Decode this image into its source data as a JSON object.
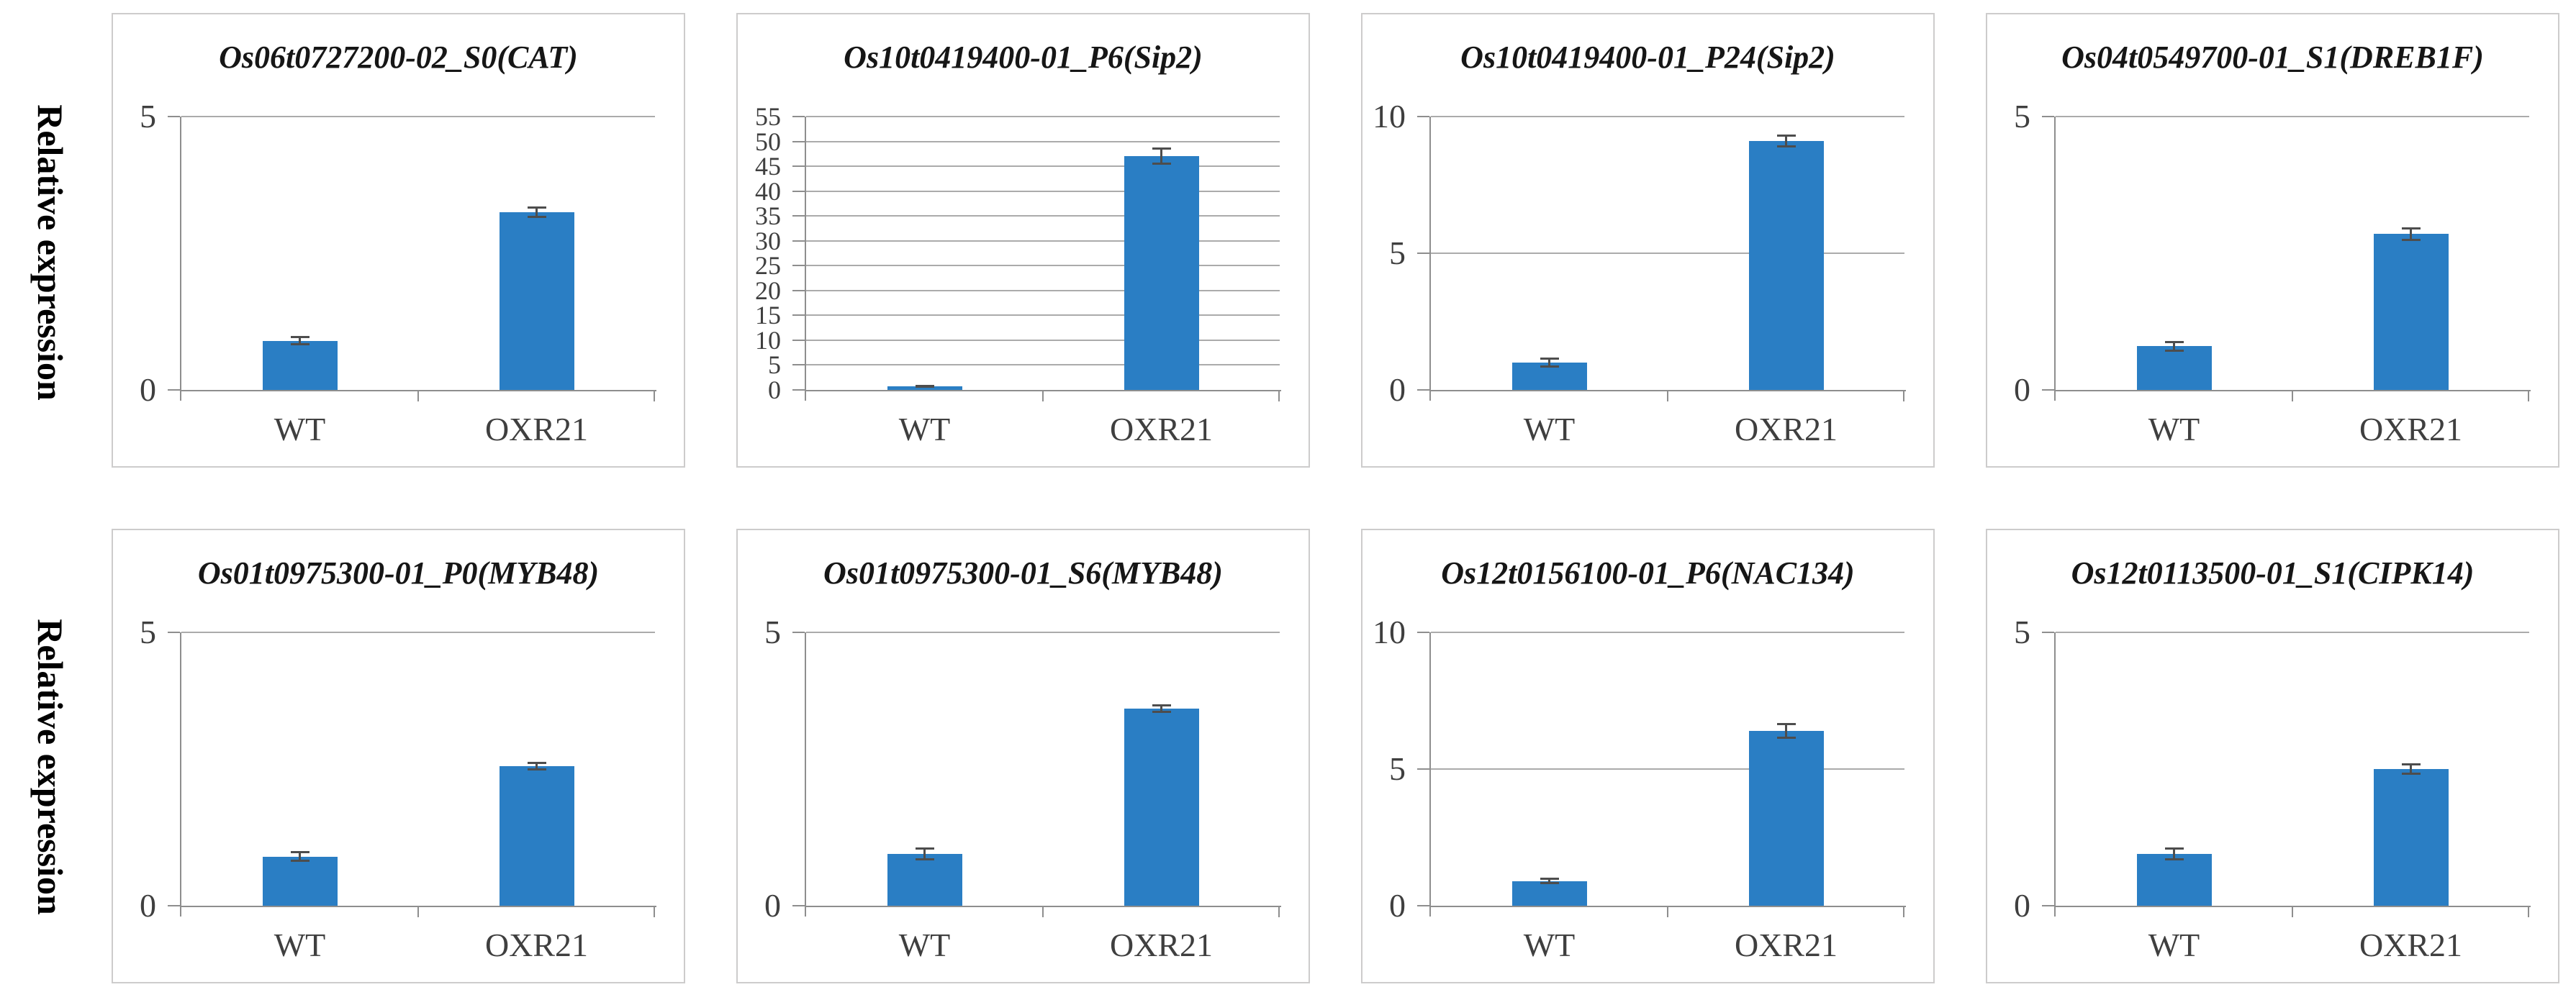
{
  "figure": {
    "row_label": "Relative expression",
    "x_categories": [
      "WT",
      "OXR21"
    ],
    "colors": {
      "bar": "#2a7ec4",
      "gridline": "#ababab",
      "axis": "#8e8e8e",
      "error_bar": "#4d4d4d",
      "tick_text": "#3f3f3f",
      "title_text": "#161616",
      "panel_border": "#cdcccc"
    }
  },
  "chart_data": [
    {
      "type": "bar",
      "title": "Os06t0727200-02_S0(CAT)",
      "categories": [
        "WT",
        "OXR21"
      ],
      "values": [
        0.9,
        3.25
      ],
      "errors": [
        0.07,
        0.08
      ],
      "ylim": [
        0,
        5
      ],
      "yticks": [
        0,
        5
      ],
      "ylabel": "Relative expression",
      "grid": true
    },
    {
      "type": "bar",
      "title": "Os10t0419400-01_P6(Sip2)",
      "categories": [
        "WT",
        "OXR21"
      ],
      "values": [
        0.7,
        47
      ],
      "errors": [
        0.1,
        1.5
      ],
      "ylim": [
        0,
        55
      ],
      "yticks": [
        0,
        5,
        10,
        15,
        20,
        25,
        30,
        35,
        40,
        45,
        50,
        55
      ],
      "ylabel": "Relative expression",
      "grid": true
    },
    {
      "type": "bar",
      "title": "Os10t0419400-01_P24(Sip2)",
      "categories": [
        "WT",
        "OXR21"
      ],
      "values": [
        1.0,
        9.1
      ],
      "errors": [
        0.15,
        0.2
      ],
      "ylim": [
        0,
        10
      ],
      "yticks": [
        0,
        5,
        10
      ],
      "ylabel": "Relative expression",
      "grid": true
    },
    {
      "type": "bar",
      "title": "Os04t0549700-01_S1(DREB1F)",
      "categories": [
        "WT",
        "OXR21"
      ],
      "values": [
        0.8,
        2.85
      ],
      "errors": [
        0.08,
        0.1
      ],
      "ylim": [
        0,
        5
      ],
      "yticks": [
        0,
        5
      ],
      "ylabel": "Relative expression",
      "grid": true
    },
    {
      "type": "bar",
      "title": "Os01t0975300-01_P0(MYB48)",
      "categories": [
        "WT",
        "OXR21"
      ],
      "values": [
        0.9,
        2.55
      ],
      "errors": [
        0.08,
        0.06
      ],
      "ylim": [
        0,
        5
      ],
      "yticks": [
        0,
        5
      ],
      "ylabel": "Relative expression",
      "grid": true
    },
    {
      "type": "bar",
      "title": "Os01t0975300-01_S6(MYB48)",
      "categories": [
        "WT",
        "OXR21"
      ],
      "values": [
        0.95,
        3.6
      ],
      "errors": [
        0.1,
        0.06
      ],
      "ylim": [
        0,
        5
      ],
      "yticks": [
        0,
        5
      ],
      "ylabel": "Relative expression",
      "grid": true
    },
    {
      "type": "bar",
      "title": "Os12t0156100-01_P6(NAC134)",
      "categories": [
        "WT",
        "OXR21"
      ],
      "values": [
        0.9,
        6.4
      ],
      "errors": [
        0.08,
        0.25
      ],
      "ylim": [
        0,
        10
      ],
      "yticks": [
        0,
        5,
        10
      ],
      "ylabel": "Relative expression",
      "grid": true
    },
    {
      "type": "bar",
      "title": "Os12t0113500-01_S1(CIPK14)",
      "categories": [
        "WT",
        "OXR21"
      ],
      "values": [
        0.95,
        2.5
      ],
      "errors": [
        0.1,
        0.08
      ],
      "ylim": [
        0,
        5
      ],
      "yticks": [
        0,
        5
      ],
      "ylabel": "Relative expression",
      "grid": true
    }
  ]
}
